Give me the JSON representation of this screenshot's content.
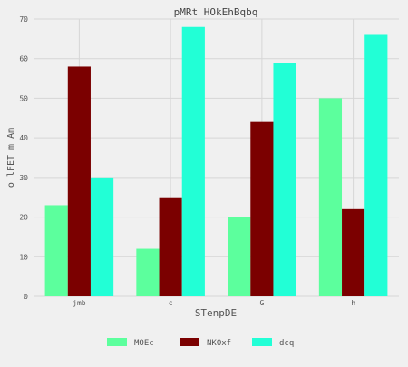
{
  "chart_data": {
    "type": "bar",
    "title": "pMRt HOkEhBqbq",
    "xlabel": "STenpDE",
    "ylabel": "o lFET m Am",
    "categories": [
      "jmb",
      "c",
      "G",
      "h"
    ],
    "series": [
      {
        "name": "MOEc",
        "values": [
          23,
          12,
          20,
          50
        ],
        "color": "#5cff9d"
      },
      {
        "name": "NKOxf",
        "values": [
          58,
          25,
          44,
          22
        ],
        "color": "#7b0000"
      },
      {
        "name": "dcq",
        "values": [
          30,
          68,
          59,
          66
        ],
        "color": "#22ffd6"
      }
    ],
    "ylim": [
      0,
      70
    ],
    "yticks": [
      0,
      10,
      20,
      30,
      40,
      50,
      60,
      70
    ],
    "grid": true,
    "legend_position": "bottom"
  }
}
